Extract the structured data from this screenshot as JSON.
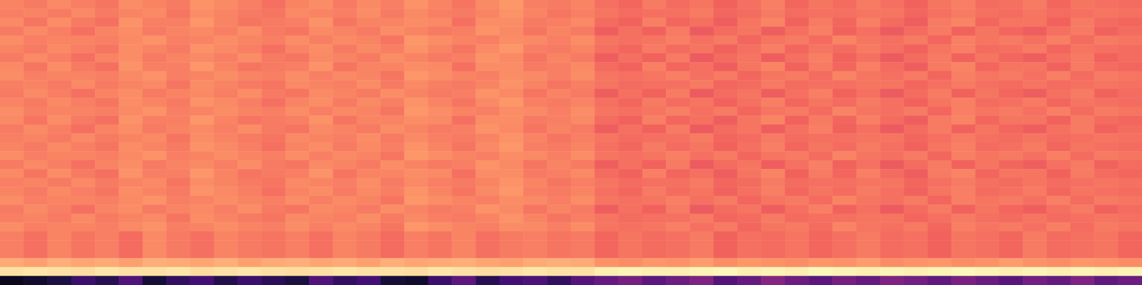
{
  "chart_data": {
    "type": "heatmap",
    "tick_labels": false,
    "color": "magma",
    "zlim": [
      0,
      100
    ],
    "values": [
      [
        74,
        72,
        75,
        73,
        71,
        76,
        74,
        72,
        77,
        75,
        73,
        70,
        74,
        76,
        72,
        75,
        73,
        77,
        74,
        71,
        75,
        78,
        73,
        72,
        74,
        70,
        68,
        72,
        69,
        71,
        67,
        70,
        73,
        68,
        71,
        69,
        72,
        70,
        67,
        71,
        73,
        69,
        70,
        72,
        68,
        71,
        70,
        69
      ],
      [
        73,
        74,
        72,
        75,
        72,
        74,
        75,
        71,
        76,
        74,
        72,
        71,
        75,
        74,
        73,
        76,
        72,
        75,
        73,
        72,
        74,
        77,
        74,
        71,
        73,
        71,
        69,
        70,
        70,
        72,
        68,
        69,
        72,
        69,
        70,
        70,
        71,
        71,
        68,
        70,
        72,
        70,
        69,
        71,
        69,
        70,
        71,
        70
      ],
      [
        75,
        71,
        76,
        72,
        70,
        77,
        73,
        73,
        78,
        74,
        71,
        72,
        73,
        77,
        71,
        74,
        74,
        76,
        75,
        70,
        76,
        76,
        72,
        73,
        75,
        69,
        67,
        73,
        68,
        70,
        66,
        71,
        74,
        67,
        72,
        68,
        73,
        69,
        66,
        72,
        74,
        68,
        71,
        71,
        67,
        72,
        69,
        68
      ],
      [
        72,
        75,
        73,
        70,
        74,
        76,
        72,
        74,
        75,
        73,
        76,
        72,
        71,
        75,
        74,
        72,
        76,
        74,
        72,
        73,
        77,
        75,
        71,
        74,
        72,
        66,
        70,
        67,
        72,
        65,
        69,
        71,
        66,
        70,
        73,
        67,
        70,
        65,
        69,
        72,
        67,
        71,
        68,
        66,
        70,
        72,
        67,
        69
      ],
      [
        76,
        73,
        74,
        74,
        73,
        75,
        77,
        73,
        74,
        76,
        74,
        73,
        76,
        73,
        75,
        74,
        71,
        78,
        76,
        74,
        73,
        76,
        75,
        73,
        76,
        71,
        70,
        71,
        73,
        70,
        72,
        68,
        71,
        72,
        69,
        74,
        71,
        70,
        72,
        68,
        73,
        71,
        72,
        70,
        73,
        69,
        72,
        71
      ],
      [
        74,
        72,
        75,
        73,
        71,
        76,
        74,
        72,
        77,
        75,
        73,
        70,
        74,
        76,
        72,
        75,
        73,
        77,
        74,
        71,
        75,
        78,
        73,
        72,
        74,
        70,
        68,
        72,
        69,
        71,
        67,
        70,
        73,
        68,
        71,
        69,
        72,
        70,
        67,
        71,
        73,
        69,
        70,
        72,
        68,
        71,
        70,
        69
      ],
      [
        72,
        75,
        73,
        70,
        74,
        76,
        72,
        74,
        75,
        73,
        76,
        72,
        71,
        75,
        74,
        72,
        76,
        74,
        72,
        73,
        77,
        75,
        71,
        74,
        72,
        66,
        70,
        67,
        72,
        65,
        69,
        71,
        66,
        70,
        73,
        67,
        70,
        65,
        69,
        72,
        67,
        71,
        68,
        66,
        70,
        72,
        67,
        69
      ],
      [
        75,
        71,
        76,
        72,
        70,
        77,
        73,
        73,
        78,
        74,
        71,
        72,
        73,
        77,
        71,
        74,
        74,
        76,
        75,
        70,
        76,
        76,
        72,
        73,
        75,
        69,
        67,
        73,
        68,
        70,
        66,
        71,
        74,
        67,
        72,
        68,
        73,
        69,
        66,
        72,
        74,
        68,
        71,
        71,
        67,
        72,
        69,
        68
      ],
      [
        76,
        73,
        74,
        74,
        73,
        75,
        77,
        73,
        74,
        76,
        74,
        73,
        76,
        73,
        75,
        74,
        71,
        78,
        76,
        74,
        73,
        76,
        75,
        73,
        76,
        71,
        70,
        71,
        73,
        70,
        72,
        68,
        71,
        72,
        69,
        74,
        71,
        70,
        72,
        68,
        73,
        71,
        72,
        70,
        73,
        69,
        72,
        71
      ],
      [
        73,
        74,
        72,
        75,
        72,
        74,
        75,
        71,
        76,
        74,
        72,
        71,
        75,
        74,
        73,
        76,
        72,
        75,
        73,
        72,
        74,
        77,
        74,
        71,
        73,
        71,
        69,
        70,
        70,
        72,
        68,
        69,
        72,
        69,
        70,
        70,
        71,
        71,
        68,
        70,
        72,
        70,
        69,
        71,
        69,
        70,
        71,
        70
      ],
      [
        72,
        75,
        73,
        70,
        74,
        76,
        72,
        74,
        75,
        73,
        76,
        72,
        71,
        75,
        74,
        72,
        76,
        74,
        72,
        73,
        77,
        75,
        71,
        74,
        72,
        66,
        70,
        67,
        72,
        65,
        69,
        71,
        66,
        70,
        73,
        67,
        70,
        65,
        69,
        72,
        67,
        71,
        68,
        66,
        70,
        72,
        67,
        69
      ],
      [
        74,
        72,
        75,
        73,
        71,
        76,
        74,
        72,
        77,
        75,
        73,
        70,
        74,
        76,
        72,
        75,
        73,
        77,
        74,
        71,
        75,
        78,
        73,
        72,
        74,
        70,
        68,
        72,
        69,
        71,
        67,
        70,
        73,
        68,
        71,
        69,
        72,
        70,
        67,
        71,
        73,
        69,
        70,
        72,
        68,
        71,
        70,
        69
      ],
      [
        76,
        73,
        74,
        74,
        73,
        75,
        77,
        73,
        74,
        76,
        74,
        73,
        76,
        73,
        75,
        74,
        71,
        78,
        76,
        74,
        73,
        76,
        75,
        73,
        76,
        71,
        70,
        71,
        73,
        70,
        72,
        68,
        71,
        72,
        69,
        74,
        71,
        70,
        72,
        68,
        73,
        71,
        72,
        70,
        73,
        69,
        72,
        71
      ],
      [
        75,
        71,
        76,
        72,
        70,
        77,
        73,
        73,
        78,
        74,
        71,
        72,
        73,
        77,
        71,
        74,
        74,
        76,
        75,
        70,
        76,
        76,
        72,
        73,
        75,
        69,
        67,
        73,
        68,
        70,
        66,
        71,
        74,
        67,
        72,
        68,
        73,
        69,
        66,
        72,
        74,
        68,
        71,
        71,
        67,
        72,
        69,
        68
      ],
      [
        72,
        75,
        73,
        70,
        74,
        76,
        72,
        74,
        75,
        73,
        76,
        72,
        71,
        75,
        74,
        72,
        76,
        74,
        72,
        73,
        77,
        75,
        71,
        74,
        72,
        66,
        70,
        67,
        72,
        65,
        69,
        71,
        66,
        70,
        73,
        67,
        70,
        65,
        69,
        72,
        67,
        71,
        68,
        66,
        70,
        72,
        67,
        69
      ],
      [
        73,
        74,
        72,
        75,
        72,
        74,
        75,
        71,
        76,
        74,
        72,
        71,
        75,
        74,
        73,
        76,
        72,
        75,
        73,
        72,
        74,
        77,
        74,
        71,
        73,
        71,
        69,
        70,
        70,
        72,
        68,
        69,
        72,
        69,
        70,
        70,
        71,
        71,
        68,
        70,
        72,
        70,
        69,
        71,
        69,
        70,
        71,
        70
      ],
      [
        74,
        72,
        75,
        73,
        71,
        76,
        74,
        72,
        77,
        75,
        73,
        70,
        74,
        76,
        72,
        75,
        73,
        77,
        74,
        71,
        75,
        78,
        73,
        72,
        74,
        70,
        68,
        72,
        69,
        71,
        67,
        70,
        73,
        68,
        71,
        69,
        72,
        70,
        67,
        71,
        73,
        69,
        70,
        72,
        68,
        71,
        70,
        69
      ],
      [
        76,
        73,
        74,
        74,
        73,
        75,
        77,
        73,
        74,
        76,
        74,
        73,
        76,
        73,
        75,
        74,
        71,
        78,
        76,
        74,
        73,
        76,
        75,
        73,
        76,
        71,
        70,
        71,
        73,
        70,
        72,
        68,
        71,
        72,
        69,
        74,
        71,
        70,
        72,
        68,
        73,
        71,
        72,
        70,
        73,
        69,
        72,
        71
      ],
      [
        72,
        75,
        73,
        70,
        74,
        76,
        72,
        74,
        75,
        73,
        76,
        72,
        71,
        75,
        74,
        72,
        76,
        74,
        72,
        73,
        77,
        75,
        71,
        74,
        72,
        66,
        70,
        67,
        72,
        65,
        69,
        71,
        66,
        70,
        73,
        67,
        70,
        65,
        69,
        72,
        67,
        71,
        68,
        66,
        70,
        72,
        67,
        69
      ],
      [
        75,
        71,
        76,
        72,
        70,
        77,
        73,
        73,
        78,
        74,
        71,
        72,
        73,
        77,
        71,
        74,
        74,
        76,
        75,
        70,
        76,
        76,
        72,
        73,
        75,
        69,
        67,
        73,
        68,
        70,
        66,
        71,
        74,
        67,
        72,
        68,
        73,
        69,
        66,
        72,
        74,
        68,
        71,
        71,
        67,
        72,
        69,
        68
      ],
      [
        73,
        74,
        72,
        75,
        72,
        74,
        75,
        71,
        76,
        74,
        72,
        71,
        75,
        74,
        73,
        76,
        72,
        75,
        73,
        72,
        74,
        77,
        74,
        71,
        73,
        71,
        69,
        70,
        70,
        72,
        68,
        69,
        72,
        69,
        70,
        70,
        71,
        71,
        68,
        70,
        72,
        70,
        69,
        71,
        69,
        70,
        71,
        70
      ],
      [
        74,
        72,
        75,
        73,
        71,
        76,
        74,
        72,
        77,
        75,
        73,
        70,
        74,
        76,
        72,
        75,
        73,
        77,
        74,
        71,
        75,
        78,
        73,
        72,
        74,
        70,
        68,
        72,
        69,
        71,
        67,
        70,
        73,
        68,
        71,
        69,
        72,
        70,
        67,
        71,
        73,
        69,
        70,
        72,
        68,
        71,
        70,
        69
      ],
      [
        76,
        73,
        74,
        74,
        73,
        75,
        77,
        73,
        74,
        76,
        74,
        73,
        76,
        73,
        75,
        74,
        71,
        78,
        76,
        74,
        73,
        76,
        75,
        73,
        76,
        71,
        70,
        71,
        73,
        70,
        72,
        68,
        71,
        72,
        69,
        74,
        71,
        70,
        72,
        68,
        73,
        71,
        72,
        70,
        73,
        69,
        72,
        71
      ],
      [
        72,
        75,
        73,
        70,
        74,
        76,
        72,
        74,
        75,
        73,
        76,
        72,
        71,
        75,
        74,
        72,
        76,
        74,
        72,
        73,
        77,
        75,
        71,
        74,
        72,
        66,
        70,
        67,
        72,
        65,
        69,
        71,
        66,
        70,
        73,
        67,
        70,
        65,
        69,
        72,
        67,
        71,
        68,
        66,
        70,
        72,
        67,
        69
      ],
      [
        73,
        74,
        72,
        75,
        72,
        74,
        75,
        71,
        76,
        74,
        72,
        71,
        75,
        74,
        73,
        76,
        72,
        75,
        73,
        72,
        74,
        77,
        74,
        71,
        73,
        71,
        69,
        70,
        70,
        72,
        68,
        69,
        72,
        69,
        70,
        70,
        71,
        71,
        68,
        70,
        72,
        70,
        69,
        71,
        69,
        70,
        71,
        70
      ],
      [
        76,
        73,
        74,
        74,
        73,
        75,
        77,
        73,
        74,
        76,
        74,
        73,
        76,
        73,
        75,
        74,
        71,
        78,
        76,
        74,
        73,
        76,
        75,
        73,
        76,
        71,
        70,
        71,
        73,
        70,
        72,
        68,
        71,
        72,
        69,
        74,
        71,
        70,
        72,
        68,
        73,
        71,
        72,
        70,
        73,
        69,
        72,
        71
      ],
      [
        73,
        70,
        74,
        71,
        73,
        69,
        75,
        72,
        70,
        74,
        72,
        71,
        73,
        70,
        74,
        72,
        69,
        73,
        71,
        74,
        70,
        72,
        73,
        71,
        72,
        68,
        71,
        69,
        70,
        72,
        67,
        70,
        69,
        71,
        68,
        70,
        72,
        69,
        70,
        67,
        71,
        70,
        68,
        72,
        69,
        70,
        71,
        68
      ],
      [
        73,
        70,
        74,
        71,
        73,
        69,
        75,
        72,
        70,
        74,
        72,
        71,
        73,
        70,
        74,
        72,
        69,
        73,
        71,
        74,
        70,
        72,
        73,
        71,
        72,
        68,
        71,
        69,
        70,
        72,
        67,
        70,
        69,
        71,
        68,
        70,
        72,
        69,
        70,
        67,
        71,
        70,
        68,
        72,
        69,
        70,
        71,
        68
      ],
      [
        73,
        70,
        74,
        71,
        73,
        69,
        75,
        72,
        70,
        74,
        72,
        71,
        73,
        70,
        74,
        72,
        69,
        73,
        71,
        74,
        70,
        72,
        73,
        71,
        72,
        68,
        71,
        69,
        70,
        72,
        67,
        70,
        69,
        71,
        68,
        70,
        72,
        69,
        70,
        67,
        71,
        70,
        68,
        72,
        69,
        70,
        71,
        68
      ],
      [
        82,
        80,
        83,
        81,
        82,
        80,
        83,
        82,
        81,
        83,
        80,
        82,
        83,
        81,
        82,
        80,
        83,
        81,
        82,
        83,
        81,
        80,
        82,
        83,
        82,
        77,
        76,
        78,
        77,
        79,
        76,
        78,
        77,
        76,
        78,
        77,
        79,
        76,
        77,
        78,
        76,
        77,
        79,
        77,
        76,
        78,
        77,
        76
      ],
      [
        94,
        95,
        94,
        93,
        95,
        94,
        94,
        95,
        93,
        94,
        95,
        94,
        93,
        94,
        95,
        94,
        94,
        93,
        95,
        94,
        93,
        94,
        95,
        94,
        94,
        97,
        98,
        97,
        97,
        98,
        99,
        97,
        98,
        97,
        99,
        98,
        97,
        98,
        97,
        98,
        99,
        98,
        97,
        98,
        97,
        98,
        97,
        98
      ],
      [
        5,
        8,
        12,
        20,
        15,
        25,
        10,
        18,
        22,
        14,
        20,
        16,
        12,
        25,
        18,
        22,
        10,
        8,
        20,
        28,
        15,
        22,
        24,
        18,
        26,
        30,
        34,
        28,
        32,
        36,
        26,
        30,
        38,
        32,
        28,
        34,
        30,
        36,
        33,
        29,
        35,
        31,
        27,
        33,
        30,
        36,
        29,
        32
      ]
    ]
  }
}
